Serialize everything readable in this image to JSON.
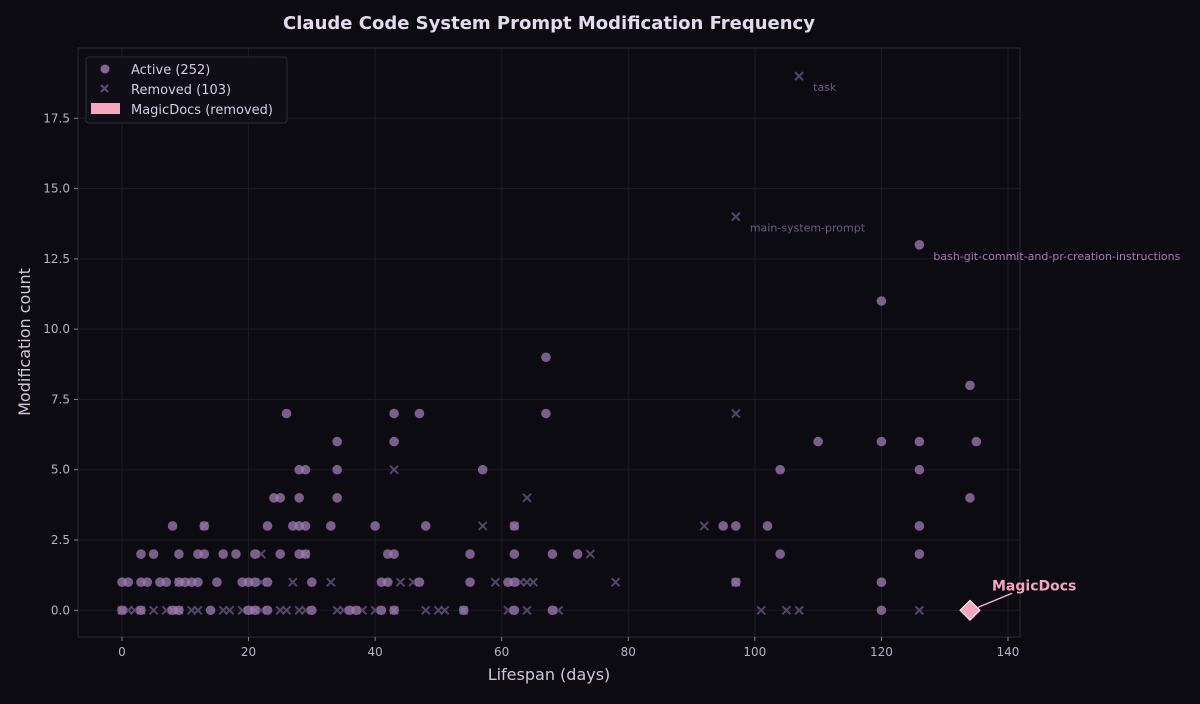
{
  "chart_data": {
    "type": "scatter",
    "title": "Claude Code System Prompt Modification Frequency",
    "xlabel": "Lifespan (days)",
    "ylabel": "Modification count",
    "xlim": [
      -6.95,
      141.9
    ],
    "ylim": [
      -0.95,
      20
    ],
    "xticks": [
      0,
      20,
      40,
      60,
      80,
      100,
      120,
      140
    ],
    "yticks": [
      0.0,
      2.5,
      5.0,
      7.5,
      10.0,
      12.5,
      15.0,
      17.5
    ],
    "grid": true,
    "legend_position": "top-left",
    "colors": {
      "background": "#0d0b12",
      "active": "#a07cb4",
      "active_bright": "#d2a2e4",
      "removed": "#5c4c74",
      "magicdocs": "#f4a6c0",
      "label_removed": "#6a5a80",
      "label_active": "#a07cb4"
    },
    "series": [
      {
        "name": "Active (252)",
        "marker": "circle",
        "points": [
          [
            0,
            0
          ],
          [
            3,
            0
          ],
          [
            8,
            0
          ],
          [
            9,
            0
          ],
          [
            14,
            0
          ],
          [
            20,
            0
          ],
          [
            21,
            0
          ],
          [
            23,
            0
          ],
          [
            30,
            0
          ],
          [
            36,
            0
          ],
          [
            37,
            0
          ],
          [
            41,
            0
          ],
          [
            43,
            0
          ],
          [
            54,
            0
          ],
          [
            62,
            0
          ],
          [
            68,
            0
          ],
          [
            120,
            0
          ],
          [
            0,
            1
          ],
          [
            1,
            1
          ],
          [
            3,
            1
          ],
          [
            4,
            1
          ],
          [
            6,
            1
          ],
          [
            7,
            1
          ],
          [
            9,
            1
          ],
          [
            10,
            1
          ],
          [
            11,
            1
          ],
          [
            12,
            1
          ],
          [
            15,
            1
          ],
          [
            19,
            1
          ],
          [
            20,
            1
          ],
          [
            21,
            1
          ],
          [
            23,
            1
          ],
          [
            30,
            1
          ],
          [
            41,
            1
          ],
          [
            42,
            1
          ],
          [
            47,
            1
          ],
          [
            55,
            1
          ],
          [
            61,
            1
          ],
          [
            62,
            1
          ],
          [
            97,
            1
          ],
          [
            120,
            1
          ],
          [
            3,
            2
          ],
          [
            5,
            2
          ],
          [
            9,
            2
          ],
          [
            12,
            2
          ],
          [
            13,
            2
          ],
          [
            16,
            2
          ],
          [
            18,
            2
          ],
          [
            21,
            2
          ],
          [
            25,
            2
          ],
          [
            28,
            2
          ],
          [
            29,
            2
          ],
          [
            42,
            2
          ],
          [
            43,
            2
          ],
          [
            55,
            2
          ],
          [
            62,
            2
          ],
          [
            68,
            2
          ],
          [
            72,
            2
          ],
          [
            104,
            2
          ],
          [
            126,
            2
          ],
          [
            8,
            3
          ],
          [
            13,
            3
          ],
          [
            23,
            3
          ],
          [
            27,
            3
          ],
          [
            28,
            3
          ],
          [
            29,
            3
          ],
          [
            33,
            3
          ],
          [
            40,
            3
          ],
          [
            48,
            3
          ],
          [
            62,
            3
          ],
          [
            95,
            3
          ],
          [
            97,
            3
          ],
          [
            102,
            3
          ],
          [
            126,
            3
          ],
          [
            24,
            4
          ],
          [
            25,
            4
          ],
          [
            28,
            4
          ],
          [
            34,
            4
          ],
          [
            134,
            4
          ],
          [
            28,
            5
          ],
          [
            29,
            5
          ],
          [
            34,
            5
          ],
          [
            57,
            5
          ],
          [
            104,
            5
          ],
          [
            126,
            5
          ],
          [
            34,
            6
          ],
          [
            43,
            6
          ],
          [
            110,
            6
          ],
          [
            120,
            6
          ],
          [
            126,
            6
          ],
          [
            135,
            6
          ],
          [
            26,
            7
          ],
          [
            43,
            7
          ],
          [
            47,
            7
          ],
          [
            67,
            7
          ],
          [
            134,
            8
          ],
          [
            67,
            9
          ],
          [
            120,
            11
          ],
          [
            126,
            13
          ]
        ]
      },
      {
        "name": "Removed (103)",
        "marker": "x",
        "points": [
          [
            0,
            0
          ],
          [
            1,
            0
          ],
          [
            2,
            0
          ],
          [
            3,
            0
          ],
          [
            5,
            0
          ],
          [
            7,
            0
          ],
          [
            8,
            0
          ],
          [
            9,
            0
          ],
          [
            11,
            0
          ],
          [
            12,
            0
          ],
          [
            16,
            0
          ],
          [
            17,
            0
          ],
          [
            19,
            0
          ],
          [
            21,
            0
          ],
          [
            22,
            0
          ],
          [
            25,
            0
          ],
          [
            26,
            0
          ],
          [
            28,
            0
          ],
          [
            29,
            0
          ],
          [
            34,
            0
          ],
          [
            35,
            0
          ],
          [
            38,
            0
          ],
          [
            40,
            0
          ],
          [
            43,
            0
          ],
          [
            48,
            0
          ],
          [
            50,
            0
          ],
          [
            51,
            0
          ],
          [
            54,
            0
          ],
          [
            61,
            0
          ],
          [
            64,
            0
          ],
          [
            69,
            0
          ],
          [
            101,
            0
          ],
          [
            105,
            0
          ],
          [
            107,
            0
          ],
          [
            126,
            0
          ],
          [
            9,
            1
          ],
          [
            22,
            1
          ],
          [
            27,
            1
          ],
          [
            33,
            1
          ],
          [
            44,
            1
          ],
          [
            46,
            1
          ],
          [
            59,
            1
          ],
          [
            63,
            1
          ],
          [
            64,
            1
          ],
          [
            65,
            1
          ],
          [
            78,
            1
          ],
          [
            97,
            1
          ],
          [
            22,
            2
          ],
          [
            29,
            2
          ],
          [
            74,
            2
          ],
          [
            13,
            3
          ],
          [
            57,
            3
          ],
          [
            62,
            3
          ],
          [
            92,
            3
          ],
          [
            64,
            4
          ],
          [
            43,
            5
          ],
          [
            97,
            7
          ],
          [
            97,
            14
          ],
          [
            107,
            19
          ]
        ]
      },
      {
        "name": "MagicDocs (removed)",
        "marker": "diamond",
        "points": [
          [
            134,
            0
          ]
        ]
      }
    ],
    "annotations": [
      {
        "text": "task",
        "x": 107,
        "y": 19,
        "style": "removed"
      },
      {
        "text": "main-system-prompt",
        "x": 97,
        "y": 14,
        "style": "removed"
      },
      {
        "text": "bash-git-commit-and-pr-creation-instructions",
        "x": 126,
        "y": 13,
        "style": "active"
      },
      {
        "text": "MagicDocs",
        "x": 134,
        "y": 0,
        "style": "magicdocs"
      }
    ]
  }
}
